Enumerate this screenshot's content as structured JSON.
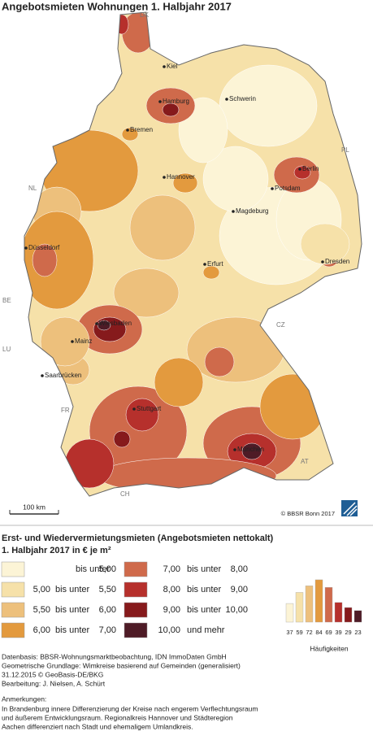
{
  "title": "Angebotsmieten Wohnungen 1. Halbjahr 2017",
  "map": {
    "cities": [
      "Kiel",
      "Hamburg",
      "Schwerin",
      "Bremen",
      "Hannover",
      "Berlin",
      "Potsdam",
      "Magdeburg",
      "Düsseldorf",
      "Erfurt",
      "Dresden",
      "Wiesbaden",
      "Mainz",
      "Saarbrücken",
      "Stuttgart",
      "München"
    ],
    "countries": [
      "DK",
      "PL",
      "NL",
      "BE",
      "LU",
      "FR",
      "CZ",
      "AT",
      "CH"
    ],
    "scale_label": "100 km",
    "copyright": "© BBSR Bonn 2017"
  },
  "legend": {
    "title_lines": [
      "Erst- und Wiedervermietungsmieten (Angebotsmieten nettokalt)",
      "1. Halbjahr 2017 in € je m²"
    ],
    "classes": [
      {
        "parts": [
          "bis unter",
          "5,00"
        ],
        "color": "#fcf4d6"
      },
      {
        "parts": [
          "5,00",
          "bis unter",
          "5,50"
        ],
        "color": "#f6e1a9"
      },
      {
        "parts": [
          "5,50",
          "bis unter",
          "6,00"
        ],
        "color": "#edc07c"
      },
      {
        "parts": [
          "6,00",
          "bis unter",
          "7,00"
        ],
        "color": "#e39a3e"
      },
      {
        "parts": [
          "7,00",
          "bis unter",
          "8,00"
        ],
        "color": "#cf6a4b"
      },
      {
        "parts": [
          "8,00",
          "bis unter",
          "9,00"
        ],
        "color": "#b6302c"
      },
      {
        "parts": [
          "9,00",
          "bis unter",
          "10,00"
        ],
        "color": "#861a1c"
      },
      {
        "parts": [
          "10,00",
          "und mehr"
        ],
        "color": "#4e1b26"
      }
    ]
  },
  "histogram": {
    "type": "bar",
    "title": "Häufigkeiten",
    "values": [
      37,
      59,
      72,
      84,
      69,
      39,
      29,
      23
    ]
  },
  "sources": [
    "Datenbasis: BBSR-Wohnungsmarktbeobachtung, IDN ImmoDaten GmbH",
    "Geometrische Grundlage: Wimkreise basierend auf Gemeinden (generalisiert)",
    "31.12.2015 © GeoBasis-DE/BKG",
    "Bearbeitung: J. Nielsen, A. Schürt"
  ],
  "notes_title": "Anmerkungen:",
  "notes": [
    "In Brandenburg innere Differenzierung der Kreise nach engerem Verflechtungsraum",
    "und äußerem Entwicklungsraum. Regionalkreis Hannover und Städteregion",
    "Aachen differenziert nach Stadt und ehemaligem Umlandkreis."
  ]
}
